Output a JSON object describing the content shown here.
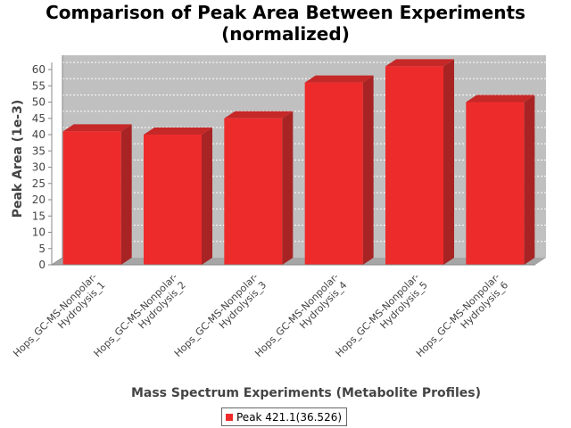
{
  "chart_data": {
    "type": "bar",
    "title_lines": [
      "Comparison of Peak Area Between Experiments",
      "(normalized)"
    ],
    "xlabel": "Mass Spectrum Experiments (Metabolite Profiles)",
    "ylabel": "Peak Area (1e-3)",
    "categories": [
      [
        "Hops_GC-MS-Nonpolar-",
        "Hydrolysis_1"
      ],
      [
        "Hops_GC-MS-Nonpolar-",
        "Hydrolysis_2"
      ],
      [
        "Hops_GC-MS-Nonpolar-",
        "Hydrolysis_3"
      ],
      [
        "Hops_GC-MS-Nonpolar-",
        "Hydrolysis_4"
      ],
      [
        "Hops_GC-MS-Nonpolar-",
        "Hydrolysis_5"
      ],
      [
        "Hops_GC-MS-Nonpolar-",
        "Hydrolysis_6"
      ]
    ],
    "series": [
      {
        "name": "Peak 421.1(36.526)",
        "values": [
          41,
          40,
          45,
          56,
          61,
          50
        ]
      }
    ],
    "ylim": [
      0,
      60
    ],
    "yticks": [
      0,
      5,
      10,
      15,
      20,
      25,
      30,
      35,
      40,
      45,
      50,
      55,
      60
    ],
    "grid": true,
    "legend_position": "bottom-center",
    "colors": {
      "bar_front": "#EE2B2B",
      "bar_side": "#A82424",
      "bar_top": "#C62828",
      "plot_back": "#C0C0C0",
      "plot_floor": "#A6A6A6",
      "grid": "#FFFFFF"
    }
  }
}
